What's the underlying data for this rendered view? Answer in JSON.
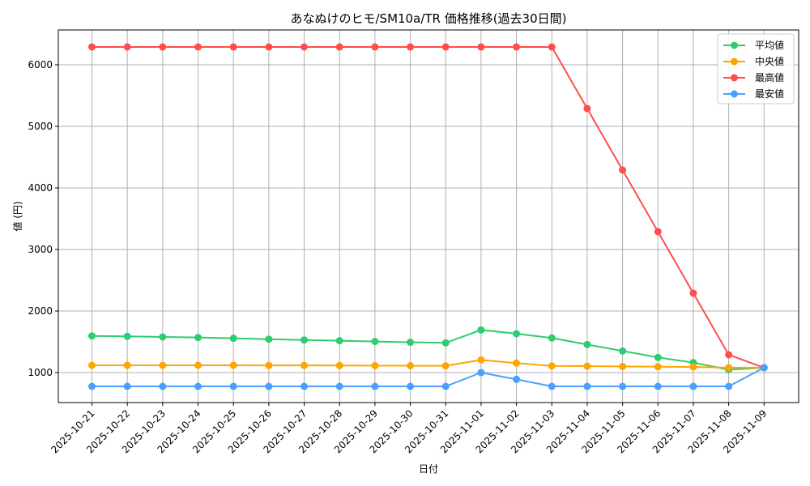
{
  "chart_data": {
    "type": "line",
    "title": "あなぬけのヒモ/SM10a/TR 価格推移(過去30日間)",
    "xlabel": "日付",
    "ylabel": "値 (円)",
    "ylim": [
      513,
      6566
    ],
    "yticks": [
      1000,
      2000,
      3000,
      4000,
      5000,
      6000
    ],
    "grid": true,
    "legend_position": "upper right",
    "categories": [
      "2025-10-21",
      "2025-10-22",
      "2025-10-23",
      "2025-10-24",
      "2025-10-25",
      "2025-10-26",
      "2025-10-27",
      "2025-10-28",
      "2025-10-29",
      "2025-10-30",
      "2025-10-31",
      "2025-11-01",
      "2025-11-02",
      "2025-11-03",
      "2025-11-04",
      "2025-11-05",
      "2025-11-06",
      "2025-11-07",
      "2025-11-08",
      "2025-11-09"
    ],
    "series": [
      {
        "name": "平均値",
        "color": "#2ecc71",
        "values": [
          1596,
          1588,
          1579,
          1570,
          1557,
          1543,
          1530,
          1518,
          1505,
          1493,
          1483,
          1693,
          1632,
          1562,
          1456,
          1351,
          1246,
          1162,
          1048,
          1080
        ]
      },
      {
        "name": "中央値",
        "color": "#ffa500",
        "values": [
          1118,
          1118,
          1118,
          1118,
          1118,
          1116,
          1116,
          1115,
          1114,
          1112,
          1110,
          1206,
          1154,
          1108,
          1105,
          1100,
          1095,
          1092,
          1080,
          1080
        ]
      },
      {
        "name": "最高値",
        "color": "#ff4d4d",
        "values": [
          6290,
          6290,
          6290,
          6290,
          6290,
          6290,
          6290,
          6290,
          6290,
          6290,
          6290,
          6290,
          6290,
          6290,
          5290,
          4290,
          3290,
          2290,
          1290,
          1080
        ]
      },
      {
        "name": "最安値",
        "color": "#4d9fff",
        "values": [
          776,
          776,
          776,
          776,
          776,
          776,
          776,
          776,
          776,
          776,
          776,
          1000,
          890,
          776,
          776,
          776,
          776,
          776,
          776,
          1080
        ]
      }
    ]
  }
}
